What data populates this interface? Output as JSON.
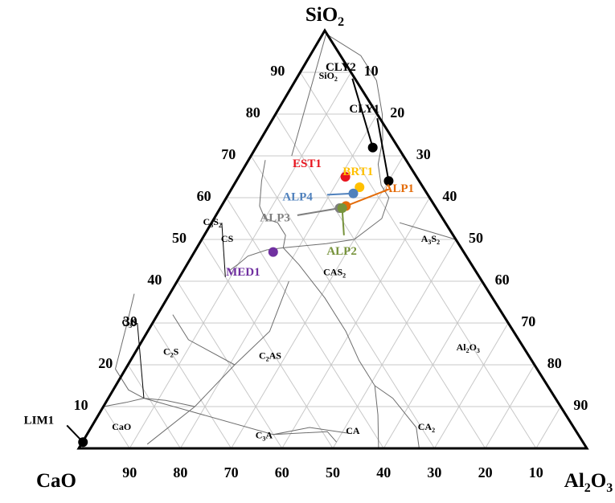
{
  "chart_data": {
    "type": "scatter",
    "subtype": "ternary",
    "vertices": {
      "top": {
        "name": "SiO",
        "sub": "2"
      },
      "left": {
        "name": "CaO",
        "sub": ""
      },
      "right": {
        "name": "Al",
        "sub": "2",
        "name2": "O",
        "sub2": "3"
      }
    },
    "ticks": {
      "left": [
        "10",
        "20",
        "30",
        "40",
        "50",
        "60",
        "70",
        "80",
        "90"
      ],
      "right": [
        "10",
        "20",
        "30",
        "40",
        "50",
        "60",
        "70",
        "80",
        "90"
      ],
      "bottom": [
        "90",
        "80",
        "70",
        "60",
        "50",
        "40",
        "30",
        "20",
        "10"
      ]
    },
    "grid_step": 10,
    "grid": true,
    "phase_fields": [
      {
        "id": "sio2",
        "label": "SiO",
        "sub": "2",
        "suffix": "",
        "sio2": 89,
        "al2o3": 6
      },
      {
        "id": "cs",
        "label": "CS",
        "sub": "",
        "suffix": "",
        "sio2": 50,
        "al2o3": 5
      },
      {
        "id": "a3s2",
        "label": "A",
        "sub": "3",
        "suffix": "S",
        "sub2": "2",
        "sio2": 50,
        "al2o3": 45
      },
      {
        "id": "cas2",
        "label": "CAS",
        "sub": "2",
        "suffix": "",
        "sio2": 42,
        "al2o3": 30
      },
      {
        "id": "c2s",
        "label": "C",
        "sub": "2",
        "suffix": "S",
        "sio2": 23,
        "al2o3": 7
      },
      {
        "id": "c2as",
        "label": "C",
        "sub": "2",
        "suffix": "AS",
        "sio2": 22,
        "al2o3": 27
      },
      {
        "id": "al2o3",
        "label": "Al",
        "sub": "2",
        "suffix": "O",
        "sub2": "3",
        "sio2": 24,
        "al2o3": 65
      },
      {
        "id": "cao",
        "label": "CaO",
        "sub": "",
        "suffix": "",
        "sio2": 5,
        "al2o3": 6
      },
      {
        "id": "c3a",
        "label": "C",
        "sub": "3",
        "suffix": "A",
        "sio2": 3,
        "al2o3": 35
      },
      {
        "id": "ca",
        "label": "CA",
        "sub": "",
        "suffix": "",
        "sio2": 4,
        "al2o3": 52
      },
      {
        "id": "ca2",
        "label": "CA",
        "sub": "2",
        "suffix": "",
        "sio2": 5,
        "al2o3": 66
      }
    ],
    "callout_fields": [
      {
        "id": "c3s2",
        "label": "C",
        "sub": "3",
        "suffix": "S",
        "sub2": "2",
        "sio2": 54,
        "al2o3": 2
      },
      {
        "id": "c3s",
        "label": "C",
        "sub": "3",
        "suffix": "S",
        "sio2": 30,
        "al2o3": -3
      }
    ],
    "boundaries": [
      [
        [
          99.4,
          0.6
        ],
        [
          70,
          8
        ]
      ],
      [
        [
          69,
          3.3
        ],
        [
          64,
          5
        ],
        [
          58,
          7.5
        ],
        [
          55,
          10
        ],
        [
          54,
          13
        ],
        [
          51,
          16
        ],
        [
          48,
          17
        ]
      ],
      [
        [
          48,
          17
        ],
        [
          47.5,
          14
        ],
        [
          46,
          11
        ],
        [
          44,
          10
        ],
        [
          42.5,
          9
        ]
      ],
      [
        [
          48,
          17
        ],
        [
          49,
          25
        ],
        [
          50,
          30
        ],
        [
          55,
          33
        ],
        [
          60,
          32
        ]
      ],
      [
        [
          60,
          32
        ],
        [
          63,
          29
        ],
        [
          68,
          26
        ],
        [
          74,
          24
        ],
        [
          80,
          21
        ],
        [
          88,
          16
        ],
        [
          94,
          10
        ],
        [
          99,
          1
        ]
      ],
      [
        [
          48,
          17
        ],
        [
          44,
          22
        ],
        [
          36,
          31
        ],
        [
          28,
          39
        ],
        [
          21,
          45
        ],
        [
          15,
          51
        ],
        [
          8,
          55
        ],
        [
          2,
          58
        ],
        [
          0,
          59
        ]
      ],
      [
        [
          54,
          37
        ],
        [
          50,
          50
        ],
        [
          49.5,
          50.5
        ]
      ],
      [
        [
          15,
          51
        ],
        [
          12,
          56
        ],
        [
          5,
          64
        ],
        [
          0,
          67
        ]
      ],
      [
        [
          1,
          13
        ],
        [
          10,
          18
        ],
        [
          20,
          21
        ],
        [
          28,
          24
        ],
        [
          40,
          22
        ]
      ],
      [
        [
          20,
          21
        ],
        [
          26,
          9
        ],
        [
          32,
          3
        ]
      ],
      [
        [
          10,
          18
        ],
        [
          11.5,
          11.5
        ],
        [
          12,
          7
        ],
        [
          3.3,
          36.7
        ],
        [
          5,
          43
        ],
        [
          3.5,
          52
        ]
      ],
      [
        [
          3.3,
          36.7
        ],
        [
          4,
          47
        ],
        [
          1.5,
          50
        ]
      ],
      [
        [
          12,
          7
        ],
        [
          11,
          4
        ],
        [
          10,
          0
        ]
      ],
      [
        [
          12,
          7
        ],
        [
          14,
          3
        ],
        [
          19,
          -2
        ]
      ],
      [
        [
          19,
          -2
        ],
        [
          30,
          -5
        ],
        [
          37,
          -7
        ]
      ]
    ],
    "callout_lines": [
      {
        "field": "c3s2",
        "from": [
          54,
          2
        ],
        "to": [
          41,
          9
        ]
      },
      {
        "field": "c3s",
        "from": [
          30,
          -3
        ],
        "to": [
          12,
          7
        ]
      }
    ],
    "samples": [
      {
        "name": "CLY2",
        "sio2": 72,
        "al2o3": 23,
        "color": "#000000",
        "label_sio2": 91,
        "label_al2o3": 7.5
      },
      {
        "name": "CLY1",
        "sio2": 64,
        "al2o3": 30,
        "color": "#000000",
        "label_sio2": 81,
        "label_al2o3": 17
      },
      {
        "name": "EST1",
        "sio2": 65,
        "al2o3": 21,
        "color": "#e8141e",
        "label_sio2": 68,
        "label_al2o3": 12
      },
      {
        "name": "BRT1",
        "sio2": 62.5,
        "al2o3": 25,
        "color": "#ffc000",
        "label_sio2": 66,
        "label_al2o3": 23
      },
      {
        "name": "ALP4",
        "sio2": 61,
        "al2o3": 24.5,
        "color": "#4f81bd",
        "label_sio2": 60,
        "label_al2o3": 14
      },
      {
        "name": "ALP1",
        "sio2": 58,
        "al2o3": 24.5,
        "color": "#e46c0a",
        "label_sio2": 62,
        "label_al2o3": 33
      },
      {
        "name": "ALP3",
        "sio2": 57.5,
        "al2o3": 23.5,
        "color": "#7f7f7f",
        "label_sio2": 55,
        "label_al2o3": 12
      },
      {
        "name": "ALP2",
        "sio2": 57.5,
        "al2o3": 24,
        "color": "#77933c",
        "label_sio2": 47,
        "label_al2o3": 29
      },
      {
        "name": "MED1",
        "sio2": 47,
        "al2o3": 15.5,
        "color": "#7030a0",
        "label_sio2": 42,
        "label_al2o3": 12
      },
      {
        "name": "LIM1",
        "sio2": 1.5,
        "al2o3": 0.1,
        "color": "#000000",
        "label_sio2": 6.5,
        "label_al2o3": -11
      }
    ],
    "sample_leader_lines": [
      {
        "name": "CLY2",
        "from": [
          72,
          23
        ],
        "to": [
          88.5,
          11
        ]
      },
      {
        "name": "CLY1",
        "from": [
          64,
          30
        ],
        "to": [
          79,
          20.5
        ]
      },
      {
        "name": "ALP4",
        "from": [
          61,
          24.5
        ],
        "to": [
          60.7,
          19.5
        ]
      },
      {
        "name": "ALP1",
        "from": [
          58,
          24.5
        ],
        "to": [
          62,
          31
        ]
      },
      {
        "name": "ALP3",
        "from": [
          57.5,
          23.5
        ],
        "to": [
          55.8,
          16
        ]
      },
      {
        "name": "ALP2",
        "from": [
          57.5,
          24
        ],
        "to": [
          51,
          27.5
        ]
      },
      {
        "name": "LIM1",
        "from": [
          1.5,
          0.1
        ],
        "to": [
          5.5,
          -5
        ]
      }
    ]
  }
}
